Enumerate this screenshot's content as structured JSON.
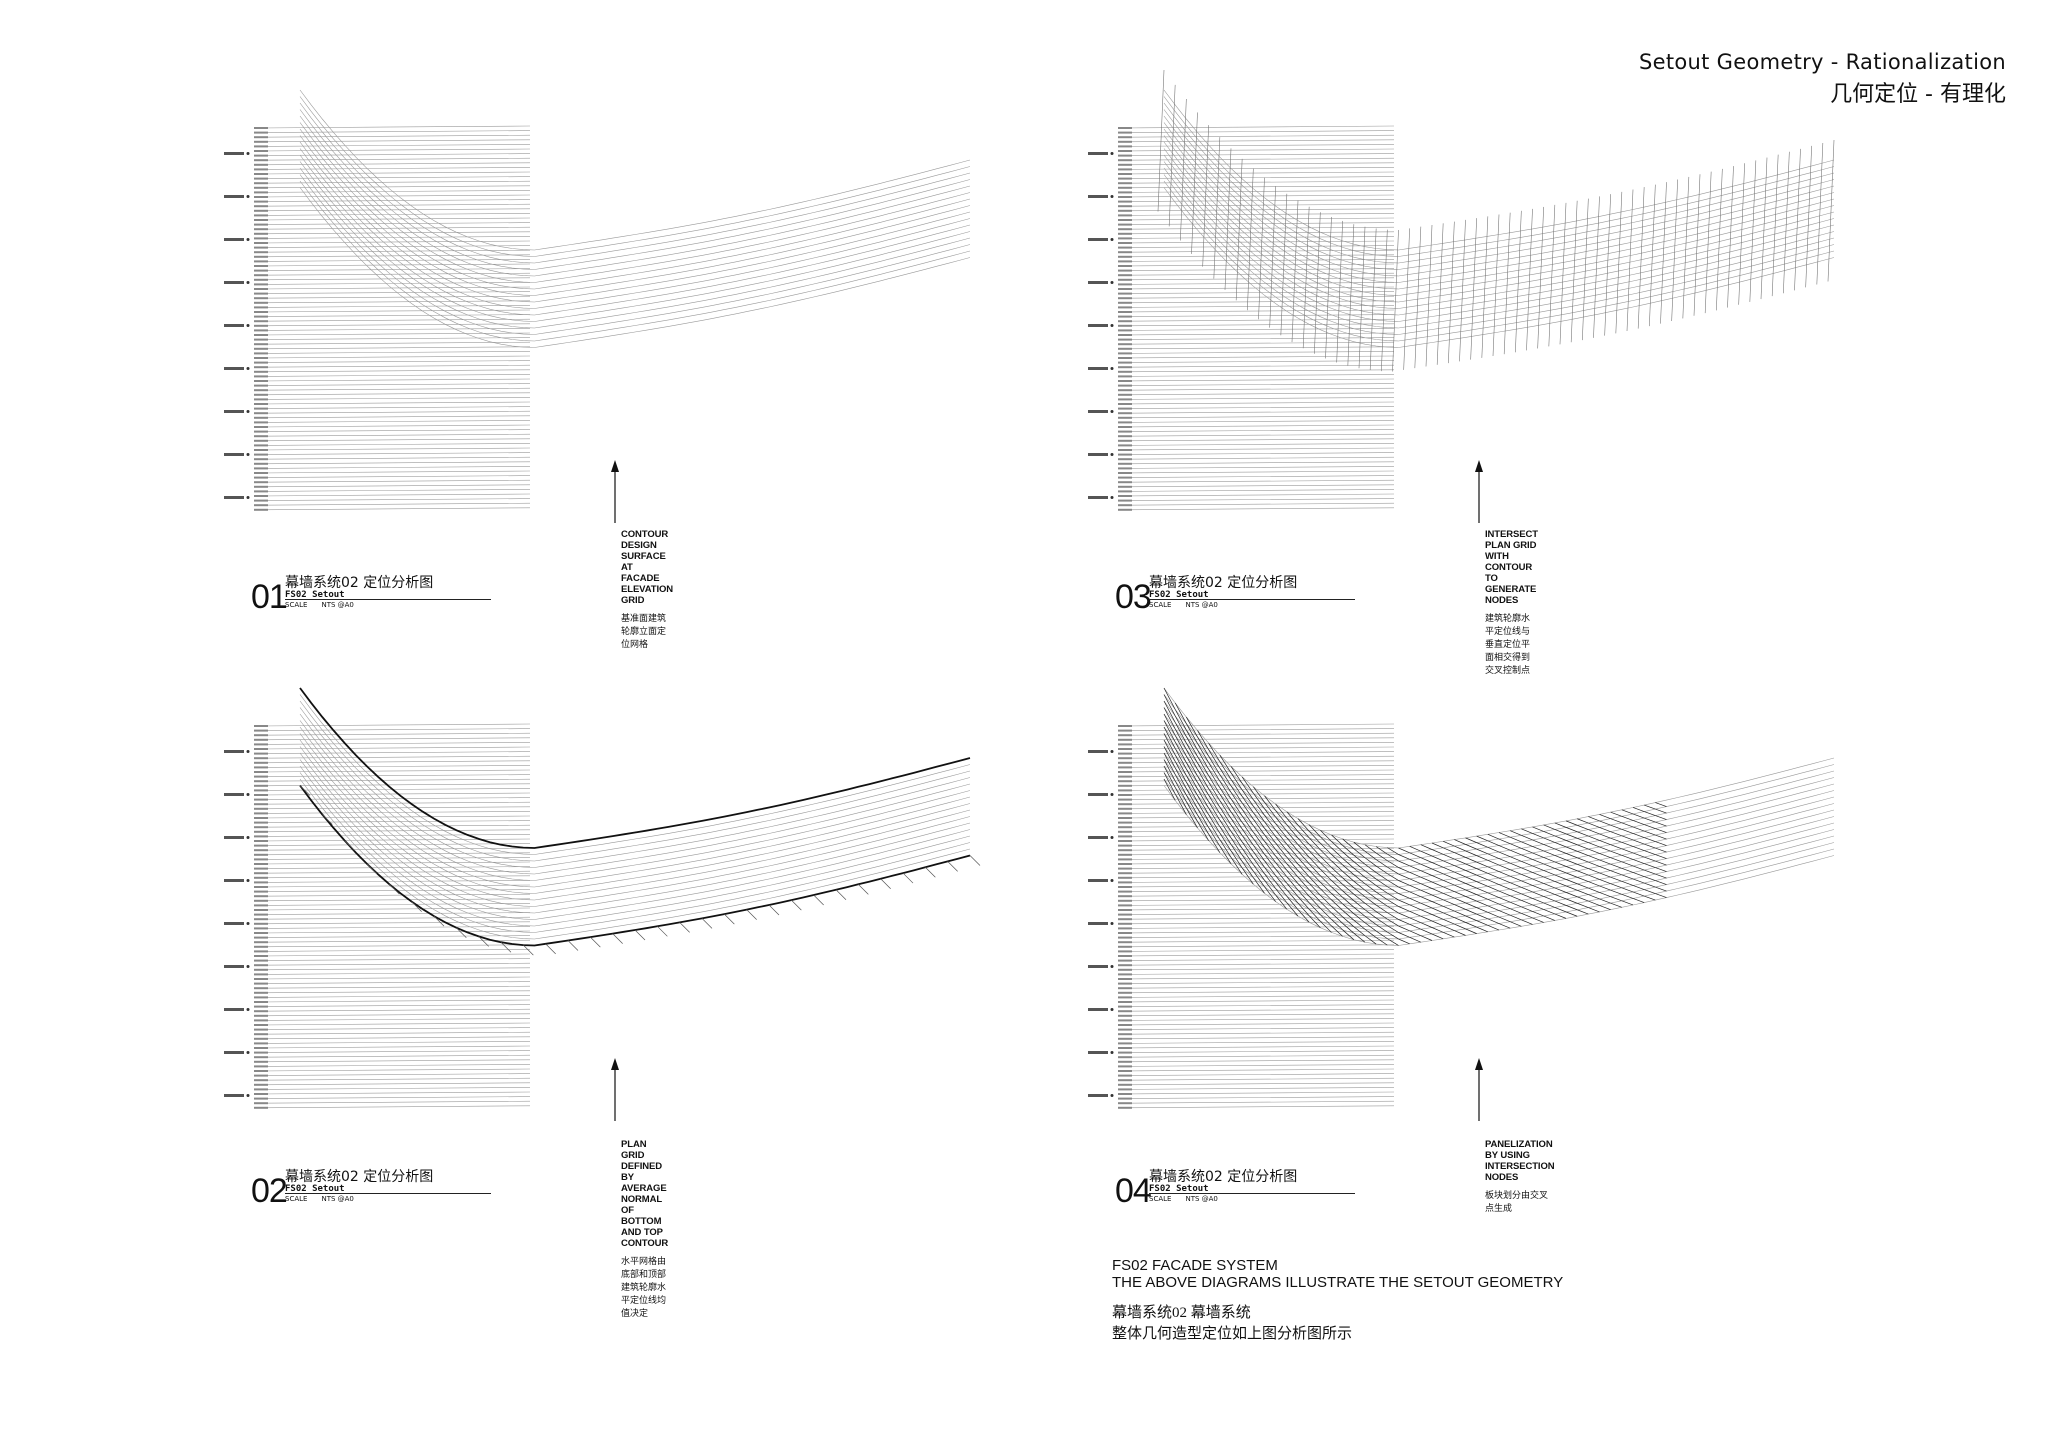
{
  "header": {
    "title_en": "Setout Geometry - Rationalization",
    "title_zh": "几何定位 - 有理化"
  },
  "panels": [
    {
      "number": "01",
      "title_zh": "幕墙系统02  定位分析图",
      "subtitle": "FS02 Setout",
      "scale_label": "SCALE",
      "scale_value": "NTS @A0",
      "callout_en": "CONTOUR DESIGN SURFACE AT FACADE ELEVATION GRID",
      "callout_zh": "基准面建筑轮廓立面定位网格",
      "stage": "contour"
    },
    {
      "number": "03",
      "title_zh": "幕墙系统02  定位分析图",
      "subtitle": "FS02 Setout",
      "scale_label": "SCALE",
      "scale_value": "NTS @A0",
      "callout_en": "INTERSECT PLAN GRID WITH CONTOUR TO GENERATE NODES",
      "callout_zh": "建筑轮廓水平定位线与垂直定位平面相交得到交叉控制点",
      "stage": "intersect"
    },
    {
      "number": "02",
      "title_zh": "幕墙系统02  定位分析图",
      "subtitle": "FS02 Setout",
      "scale_label": "SCALE",
      "scale_value": "NTS @A0",
      "callout_en": "PLAN GRID DEFINED BY AVERAGE NORMAL OF BOTTOM AND TOP CONTOUR",
      "callout_zh": "水平网格由底部和顶部建筑轮廓水平定位线均值决定",
      "stage": "plangrid"
    },
    {
      "number": "04",
      "title_zh": "幕墙系统02  定位分析图",
      "subtitle": "FS02 Setout",
      "scale_label": "SCALE",
      "scale_value": "NTS @A0",
      "callout_en": "PANELIZATION BY USING INTERSECTION NODES",
      "callout_zh": "板块划分由交叉点生成",
      "stage": "panel"
    }
  ],
  "summary": {
    "line1": "FS02 FACADE SYSTEM",
    "line2": "THE ABOVE DIAGRAMS ILLUSTRATE THE SETOUT GEOMETRY",
    "line3": "幕墙系统02  幕墙系统",
    "line4": "整体几何造型定位如上图分析图所示"
  },
  "colors": {
    "ink": "#111111",
    "hairline": "#9a9a9a",
    "paper": "#ffffff"
  }
}
